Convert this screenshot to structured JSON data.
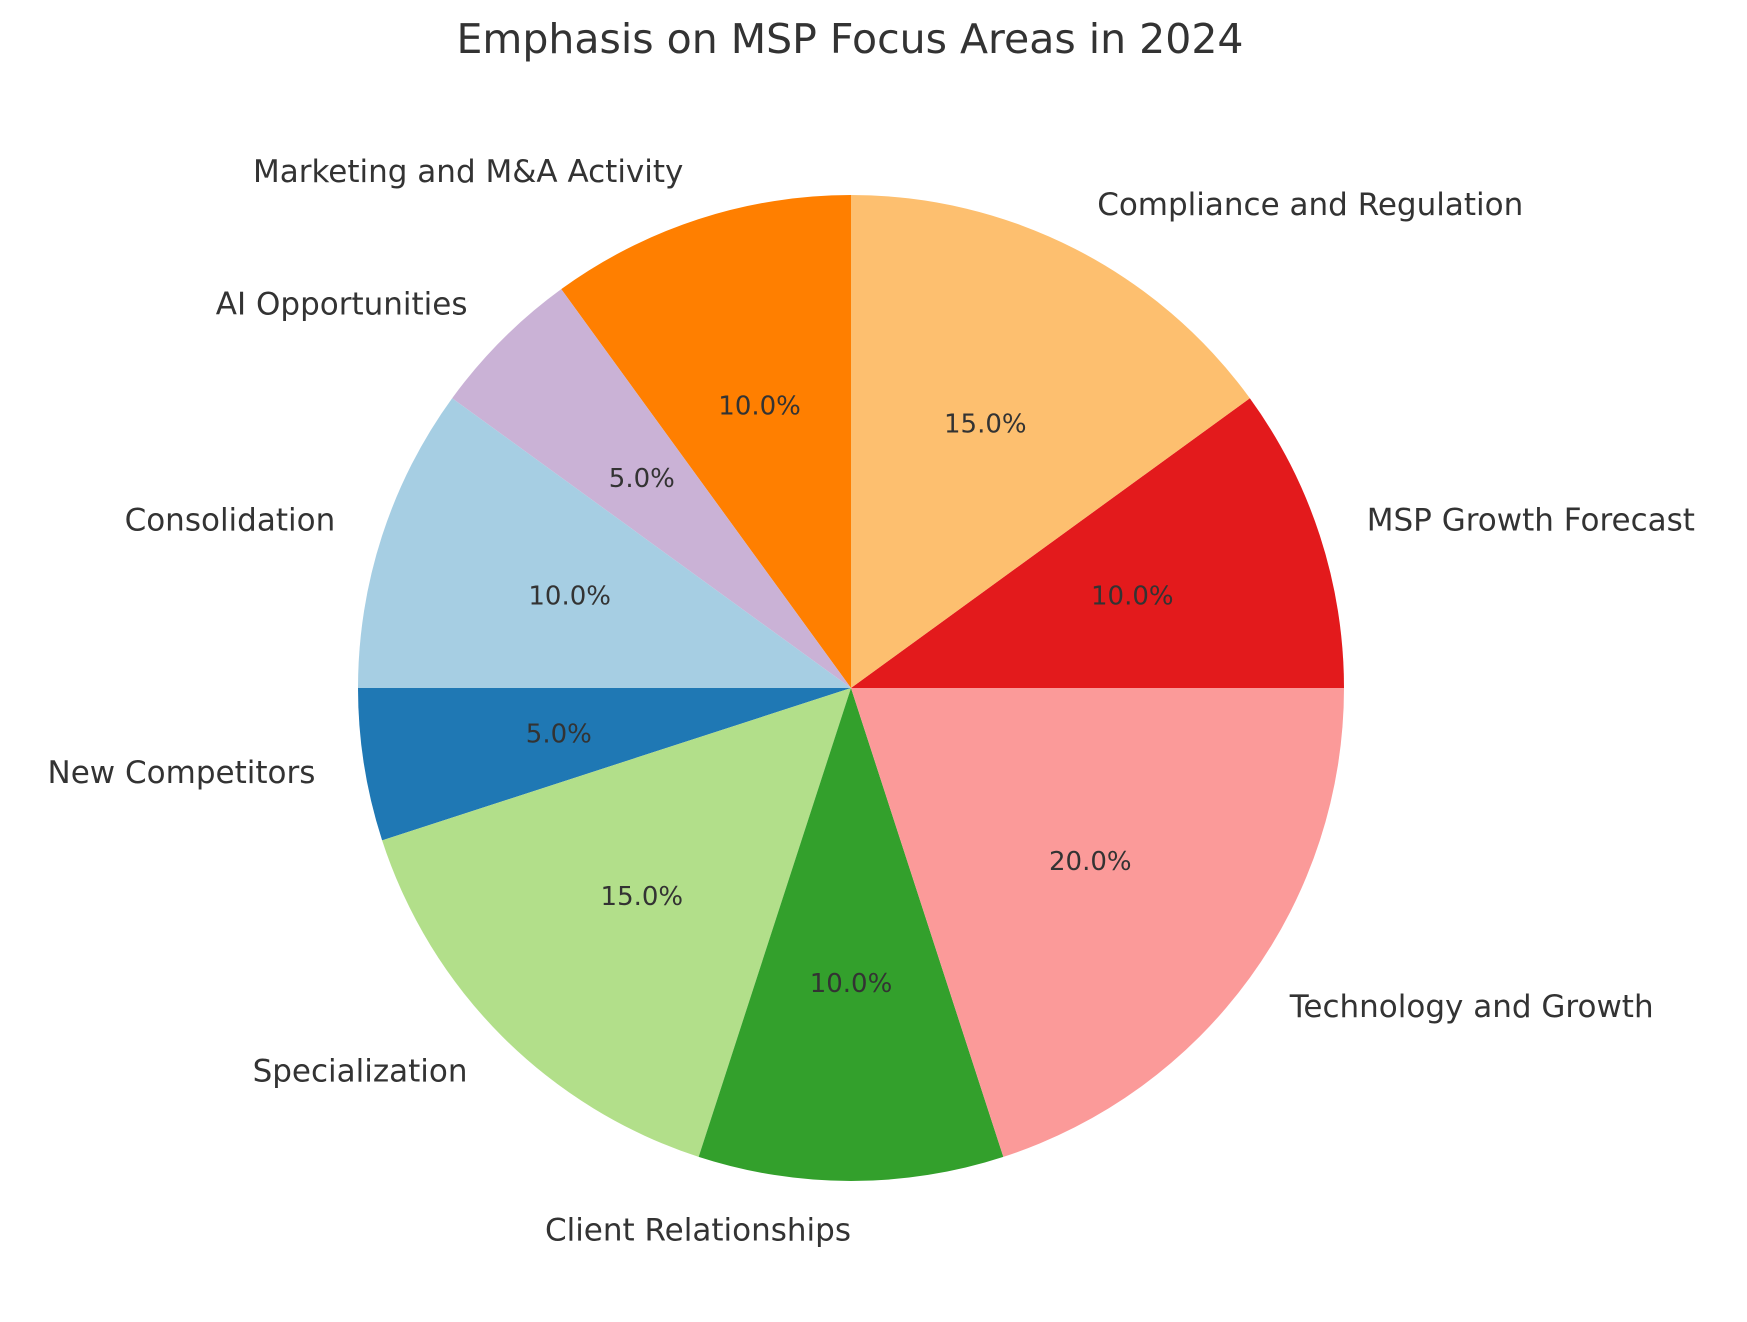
{
  "chart_data": {
    "type": "pie",
    "title": "Emphasis on MSP Focus Areas in 2024",
    "start_angle_deg": 180,
    "direction": "counterclockwise",
    "slices": [
      {
        "label": "New Competitors",
        "value": 5.0,
        "pct_label": "5.0%",
        "color": "#1f78b4"
      },
      {
        "label": "Specialization",
        "value": 15.0,
        "pct_label": "15.0%",
        "color": "#b2df8a"
      },
      {
        "label": "Client Relationships",
        "value": 10.0,
        "pct_label": "10.0%",
        "color": "#33a02c"
      },
      {
        "label": "Technology and Growth",
        "value": 20.0,
        "pct_label": "20.0%",
        "color": "#fb9a99"
      },
      {
        "label": "MSP Growth Forecast",
        "value": 10.0,
        "pct_label": "10.0%",
        "color": "#e31a1c"
      },
      {
        "label": "Compliance and Regulation",
        "value": 15.0,
        "pct_label": "15.0%",
        "color": "#fdbf6f"
      },
      {
        "label": "Marketing and M&A Activity",
        "value": 10.0,
        "pct_label": "10.0%",
        "color": "#ff7f00"
      },
      {
        "label": "AI Opportunities",
        "value": 5.0,
        "pct_label": "5.0%",
        "color": "#cab2d6"
      },
      {
        "label": "Consolidation",
        "value": 10.0,
        "pct_label": "10.0%",
        "color": "#a6cee3"
      }
    ]
  }
}
